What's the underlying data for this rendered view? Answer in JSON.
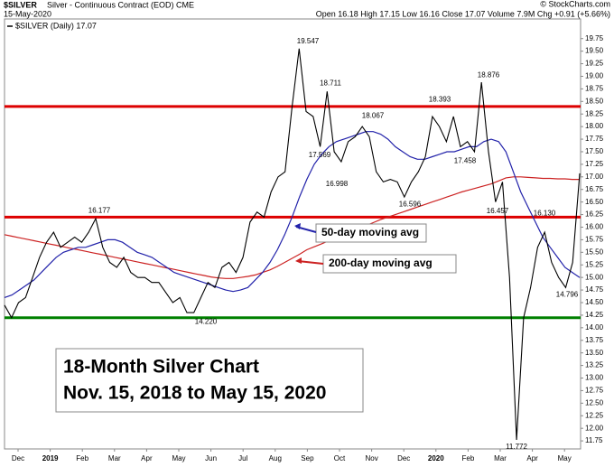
{
  "chart_data": {
    "type": "line",
    "title": "18-Month Silver Chart",
    "subtitle": "Nov. 15, 2018 to May 15, 2020",
    "header": {
      "symbol": "$SILVER",
      "description": "Silver - Continuous Contract (EOD) CME",
      "date": "15-May-2020",
      "quote": "Open 16.18 High 17.15 Low 16.16 Close 17.07 Volume 7.9M Chg +0.91 (+5.66%)",
      "credit": "© StockCharts.com"
    },
    "x_labels": [
      "Dec",
      "2019",
      "Feb",
      "Mar",
      "Apr",
      "May",
      "Jun",
      "Jul",
      "Aug",
      "Sep",
      "Oct",
      "Nov",
      "Dec",
      "2020",
      "Feb",
      "Mar",
      "Apr",
      "May"
    ],
    "series": [
      {
        "name": "$SILVER (Daily) 17.07",
        "color": "#000000",
        "values": [
          14.45,
          14.2,
          14.5,
          14.6,
          15.0,
          15.4,
          15.7,
          15.9,
          15.6,
          15.7,
          15.8,
          15.7,
          15.9,
          16.17,
          15.6,
          15.3,
          15.2,
          15.4,
          15.1,
          15.0,
          15.0,
          14.9,
          14.9,
          14.7,
          14.5,
          14.6,
          14.3,
          14.3,
          14.6,
          14.9,
          14.8,
          15.2,
          15.3,
          15.1,
          15.4,
          16.1,
          16.3,
          16.2,
          16.7,
          17.0,
          17.1,
          18.4,
          19.55,
          18.3,
          18.2,
          17.6,
          18.7,
          17.5,
          17.3,
          17.7,
          17.8,
          18.0,
          17.8,
          17.1,
          16.9,
          16.95,
          16.9,
          16.6,
          16.9,
          17.1,
          17.4,
          18.2,
          18.0,
          17.7,
          18.2,
          17.6,
          17.7,
          17.5,
          18.88,
          17.5,
          16.5,
          16.9,
          15.0,
          11.77,
          14.2,
          14.8,
          15.6,
          15.9,
          15.3,
          15.0,
          14.8,
          15.3,
          17.07
        ]
      },
      {
        "name": "50-day moving avg",
        "color": "#2222aa",
        "values": [
          14.6,
          14.65,
          14.75,
          14.85,
          14.95,
          15.1,
          15.25,
          15.4,
          15.5,
          15.55,
          15.6,
          15.6,
          15.65,
          15.7,
          15.75,
          15.75,
          15.7,
          15.6,
          15.5,
          15.45,
          15.4,
          15.3,
          15.2,
          15.1,
          15.05,
          15.0,
          14.95,
          14.9,
          14.85,
          14.8,
          14.75,
          14.72,
          14.75,
          14.8,
          14.95,
          15.1,
          15.3,
          15.55,
          15.85,
          16.2,
          16.6,
          16.95,
          17.25,
          17.45,
          17.6,
          17.7,
          17.75,
          17.8,
          17.85,
          17.9,
          17.9,
          17.85,
          17.75,
          17.6,
          17.5,
          17.4,
          17.35,
          17.35,
          17.4,
          17.45,
          17.5,
          17.5,
          17.55,
          17.6,
          17.6,
          17.7,
          17.75,
          17.7,
          17.5,
          17.1,
          16.7,
          16.4,
          16.1,
          15.8,
          15.6,
          15.4,
          15.2,
          15.1,
          15.0
        ]
      },
      {
        "name": "200-day moving avg",
        "color": "#cc2222",
        "values": [
          15.85,
          15.82,
          15.79,
          15.76,
          15.73,
          15.7,
          15.67,
          15.64,
          15.61,
          15.58,
          15.55,
          15.52,
          15.49,
          15.46,
          15.43,
          15.4,
          15.37,
          15.34,
          15.31,
          15.28,
          15.25,
          15.22,
          15.19,
          15.16,
          15.13,
          15.1,
          15.07,
          15.04,
          15.01,
          14.99,
          14.98,
          14.98,
          15.0,
          15.02,
          15.05,
          15.1,
          15.15,
          15.22,
          15.3,
          15.38,
          15.46,
          15.55,
          15.61,
          15.67,
          15.73,
          15.79,
          15.85,
          15.91,
          15.97,
          16.03,
          16.09,
          16.15,
          16.2,
          16.25,
          16.3,
          16.35,
          16.4,
          16.45,
          16.5,
          16.55,
          16.6,
          16.65,
          16.7,
          16.74,
          16.78,
          16.82,
          16.86,
          16.92,
          16.98,
          17.0,
          17.0,
          16.99,
          16.98,
          16.97,
          16.97,
          16.96,
          16.96,
          16.95,
          16.95
        ]
      }
    ],
    "reference_lines": [
      {
        "value": 18.4,
        "color": "#dd0000"
      },
      {
        "value": 16.2,
        "color": "#dd0000"
      },
      {
        "value": 14.2,
        "color": "#008000"
      }
    ],
    "point_labels": [
      16.177,
      19.547,
      18.711,
      17.569,
      16.998,
      18.067,
      16.596,
      18.393,
      17.458,
      18.876,
      16.457,
      16.13,
      14.796,
      11.772,
      14.22
    ],
    "ylim": [
      11.59,
      20.14
    ],
    "yticks": [
      11.75,
      {
        "value": 12,
        "label": "12.00"
      },
      12.25,
      {
        "value": 12.5,
        "label": "12.50"
      },
      12.75,
      {
        "value": 13,
        "label": "13.00"
      },
      13.25,
      {
        "value": 13.5,
        "label": "13.50"
      },
      13.75,
      {
        "value": 14,
        "label": "14.00"
      },
      14.25,
      {
        "value": 14.5,
        "label": "14.50"
      },
      14.75,
      {
        "value": 15,
        "label": "15.00"
      },
      15.25,
      {
        "value": 15.5,
        "label": "15.50"
      },
      15.75,
      {
        "value": 16,
        "label": "16.00"
      },
      16.25,
      {
        "value": 16.5,
        "label": "16.50"
      },
      16.75,
      {
        "value": 17,
        "label": "17.00"
      },
      17.25,
      {
        "value": 17.5,
        "label": "17.50"
      },
      17.75,
      {
        "value": 18,
        "label": "18.00"
      },
      18.25,
      {
        "value": 18.5,
        "label": "18.50"
      },
      18.75,
      {
        "value": 19,
        "label": "19.00"
      },
      19.25,
      {
        "value": 19.5,
        "label": "19.50"
      },
      19.75
    ],
    "grid": false
  }
}
